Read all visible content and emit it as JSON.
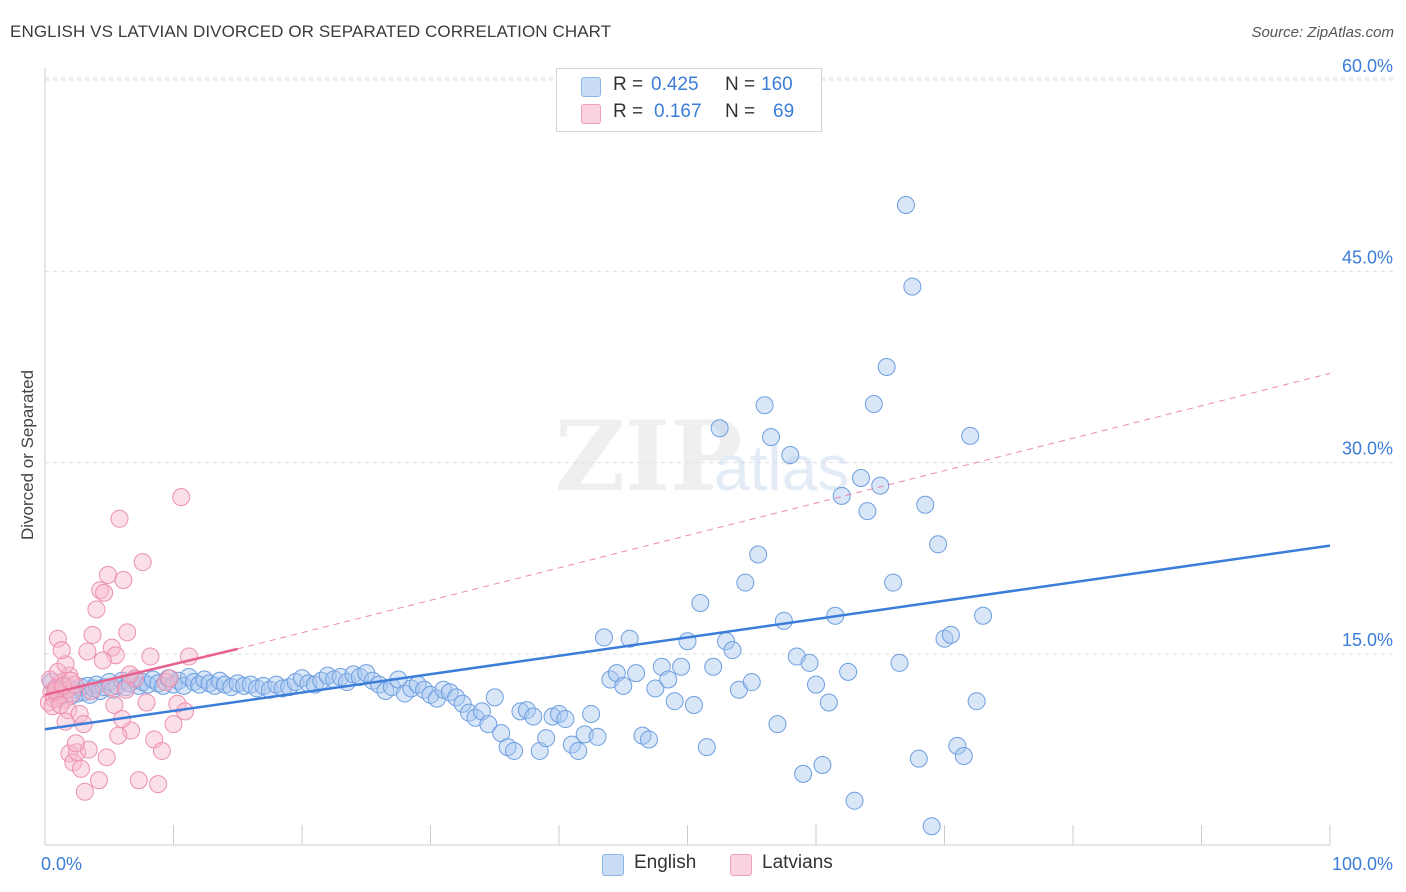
{
  "header": {
    "title": "ENGLISH VS LATVIAN DIVORCED OR SEPARATED CORRELATION CHART",
    "source": "Source: ZipAtlas.com"
  },
  "watermark": {
    "zip": "ZIP",
    "atlas": "atlas"
  },
  "legend": {
    "rows": [
      {
        "r_label": "R =",
        "r_value": "0.425",
        "n_label": "N =",
        "n_value": "160",
        "color": "#a9c8f0"
      },
      {
        "r_label": "R =",
        "r_value": "0.167",
        "n_label": "N =",
        "n_value": "69",
        "color": "#f6b8cb"
      }
    ]
  },
  "bottom_legend": {
    "english": "English",
    "latvians": "Latvians"
  },
  "chart_data": {
    "type": "scatter",
    "title": "ENGLISH VS LATVIAN DIVORCED OR SEPARATED CORRELATION CHART",
    "xlabel": "",
    "ylabel": "Divorced or Separated",
    "xlim": [
      0,
      100
    ],
    "ylim": [
      0,
      62
    ],
    "x_tick_labels": [
      "0.0%",
      "100.0%"
    ],
    "y_ticks": [
      15,
      30,
      45,
      60
    ],
    "y_tick_labels": [
      "15.0%",
      "30.0%",
      "45.0%",
      "60.0%"
    ],
    "grid": true,
    "colors": {
      "english": "#3b7dd8",
      "latvians": "#e8628f"
    },
    "series": [
      {
        "name": "English",
        "trend": {
          "x0": 0,
          "y0": 9.1,
          "x1": 100,
          "y1": 23.5,
          "style": "solid"
        },
        "points": [
          [
            0.5,
            12.8
          ],
          [
            0.8,
            12.3
          ],
          [
            1,
            11.5
          ],
          [
            1.2,
            12.7
          ],
          [
            1.5,
            12.1
          ],
          [
            1.8,
            12.4
          ],
          [
            2,
            11.7
          ],
          [
            2.2,
            12.2
          ],
          [
            2.5,
            11.9
          ],
          [
            2.8,
            12.4
          ],
          [
            3,
            12.0
          ],
          [
            3.3,
            12.5
          ],
          [
            3.5,
            11.8
          ],
          [
            3.8,
            12.3
          ],
          [
            4,
            12.6
          ],
          [
            4.3,
            12.1
          ],
          [
            4.6,
            12.4
          ],
          [
            5,
            12.8
          ],
          [
            5.3,
            12.2
          ],
          [
            5.6,
            12.5
          ],
          [
            6,
            12.9
          ],
          [
            6.3,
            12.4
          ],
          [
            6.6,
            12.7
          ],
          [
            7,
            13.0
          ],
          [
            7.3,
            12.5
          ],
          [
            7.6,
            12.8
          ],
          [
            8,
            12.6
          ],
          [
            8.4,
            13.0
          ],
          [
            8.8,
            12.7
          ],
          [
            9.2,
            12.5
          ],
          [
            9.6,
            13.1
          ],
          [
            10,
            12.6
          ],
          [
            10.4,
            12.9
          ],
          [
            10.8,
            12.5
          ],
          [
            11.2,
            13.2
          ],
          [
            11.6,
            12.8
          ],
          [
            12,
            12.6
          ],
          [
            12.4,
            13.0
          ],
          [
            12.8,
            12.7
          ],
          [
            13.2,
            12.5
          ],
          [
            13.6,
            12.9
          ],
          [
            14,
            12.6
          ],
          [
            14.5,
            12.4
          ],
          [
            15,
            12.7
          ],
          [
            15.5,
            12.5
          ],
          [
            16,
            12.6
          ],
          [
            16.5,
            12.3
          ],
          [
            17,
            12.5
          ],
          [
            17.5,
            12.2
          ],
          [
            18,
            12.6
          ],
          [
            18.5,
            12.3
          ],
          [
            19,
            12.4
          ],
          [
            19.5,
            12.8
          ],
          [
            20,
            13.1
          ],
          [
            20.5,
            12.7
          ],
          [
            21,
            12.6
          ],
          [
            21.5,
            12.9
          ],
          [
            22,
            13.3
          ],
          [
            22.5,
            13.0
          ],
          [
            23,
            13.2
          ],
          [
            23.5,
            12.8
          ],
          [
            24,
            13.4
          ],
          [
            24.5,
            13.2
          ],
          [
            25,
            13.5
          ],
          [
            25.5,
            12.9
          ],
          [
            26,
            12.6
          ],
          [
            26.5,
            12.1
          ],
          [
            27,
            12.4
          ],
          [
            27.5,
            13.0
          ],
          [
            28,
            11.9
          ],
          [
            28.5,
            12.3
          ],
          [
            29,
            12.6
          ],
          [
            29.5,
            12.2
          ],
          [
            30,
            11.8
          ],
          [
            30.5,
            11.5
          ],
          [
            31,
            12.2
          ],
          [
            31.5,
            12.0
          ],
          [
            32,
            11.6
          ],
          [
            32.5,
            11.1
          ],
          [
            33,
            10.4
          ],
          [
            33.5,
            10.0
          ],
          [
            34,
            10.5
          ],
          [
            34.5,
            9.5
          ],
          [
            35,
            11.6
          ],
          [
            35.5,
            8.8
          ],
          [
            36,
            7.7
          ],
          [
            36.5,
            7.4
          ],
          [
            37,
            10.5
          ],
          [
            37.5,
            10.6
          ],
          [
            38,
            10.1
          ],
          [
            38.5,
            7.4
          ],
          [
            39,
            8.4
          ],
          [
            39.5,
            10.1
          ],
          [
            40,
            10.3
          ],
          [
            40.5,
            9.9
          ],
          [
            41,
            7.9
          ],
          [
            41.5,
            7.4
          ],
          [
            42,
            8.7
          ],
          [
            42.5,
            10.3
          ],
          [
            43,
            8.5
          ],
          [
            43.5,
            16.3
          ],
          [
            44,
            13.0
          ],
          [
            44.5,
            13.5
          ],
          [
            45,
            12.5
          ],
          [
            45.5,
            16.2
          ],
          [
            46,
            13.5
          ],
          [
            46.5,
            8.6
          ],
          [
            47,
            8.3
          ],
          [
            47.5,
            12.3
          ],
          [
            48,
            14.0
          ],
          [
            48.5,
            13.0
          ],
          [
            49,
            11.3
          ],
          [
            49.5,
            14.0
          ],
          [
            50,
            16.0
          ],
          [
            50.5,
            11.0
          ],
          [
            51,
            19.0
          ],
          [
            51.5,
            7.7
          ],
          [
            52,
            14.0
          ],
          [
            52.5,
            32.7
          ],
          [
            53,
            16.0
          ],
          [
            53.5,
            15.3
          ],
          [
            54,
            12.2
          ],
          [
            54.5,
            20.6
          ],
          [
            55,
            12.8
          ],
          [
            55.5,
            22.8
          ],
          [
            56,
            34.5
          ],
          [
            56.5,
            32.0
          ],
          [
            57,
            9.5
          ],
          [
            57.5,
            17.6
          ],
          [
            58,
            30.6
          ],
          [
            58.5,
            14.8
          ],
          [
            59,
            5.6
          ],
          [
            59.5,
            14.3
          ],
          [
            60,
            12.6
          ],
          [
            60.5,
            6.3
          ],
          [
            61,
            11.2
          ],
          [
            61.5,
            18.0
          ],
          [
            62,
            27.4
          ],
          [
            62.5,
            13.6
          ],
          [
            63,
            3.5
          ],
          [
            63.5,
            28.8
          ],
          [
            64,
            26.2
          ],
          [
            64.5,
            34.6
          ],
          [
            65,
            28.2
          ],
          [
            65.5,
            37.5
          ],
          [
            66,
            20.6
          ],
          [
            66.5,
            14.3
          ],
          [
            67,
            50.2
          ],
          [
            67.5,
            43.8
          ],
          [
            68,
            6.8
          ],
          [
            68.5,
            26.7
          ],
          [
            69,
            1.5
          ],
          [
            69.5,
            23.6
          ],
          [
            70,
            16.2
          ],
          [
            70.5,
            16.5
          ],
          [
            71,
            7.8
          ],
          [
            71.5,
            7.0
          ],
          [
            72,
            32.1
          ],
          [
            72.5,
            11.3
          ],
          [
            73,
            18.0
          ]
        ]
      },
      {
        "name": "Latvians",
        "trend": {
          "x0": 0,
          "y0": 11.8,
          "x1": 15,
          "y1": 15.4,
          "style": "solid",
          "extended_to": [
            100,
            37.0
          ]
        },
        "points": [
          [
            0.3,
            11.2
          ],
          [
            0.5,
            12.0
          ],
          [
            0.7,
            11.5
          ],
          [
            0.9,
            12.4
          ],
          [
            1.1,
            11.8
          ],
          [
            1.3,
            12.8
          ],
          [
            1.5,
            11.4
          ],
          [
            1.7,
            12.2
          ],
          [
            1.9,
            13.3
          ],
          [
            2.1,
            11.9
          ],
          [
            2.3,
            12.6
          ],
          [
            0.4,
            13.0
          ],
          [
            0.6,
            10.9
          ],
          [
            0.8,
            12.1
          ],
          [
            1.0,
            13.6
          ],
          [
            1.2,
            11.0
          ],
          [
            1.4,
            12.5
          ],
          [
            1.6,
            14.2
          ],
          [
            1.8,
            10.6
          ],
          [
            2.0,
            12.9
          ],
          [
            1.0,
            16.2
          ],
          [
            1.3,
            15.3
          ],
          [
            1.6,
            9.7
          ],
          [
            1.9,
            7.2
          ],
          [
            2.2,
            6.5
          ],
          [
            2.5,
            7.3
          ],
          [
            2.8,
            6.0
          ],
          [
            3.1,
            4.2
          ],
          [
            3.4,
            7.5
          ],
          [
            3.7,
            16.5
          ],
          [
            4.0,
            18.5
          ],
          [
            4.3,
            20.0
          ],
          [
            4.6,
            19.8
          ],
          [
            4.9,
            21.2
          ],
          [
            5.2,
            15.5
          ],
          [
            5.5,
            14.9
          ],
          [
            5.8,
            25.6
          ],
          [
            6.1,
            20.8
          ],
          [
            6.4,
            16.7
          ],
          [
            6.7,
            9.0
          ],
          [
            7.0,
            13.1
          ],
          [
            7.3,
            5.1
          ],
          [
            7.6,
            22.2
          ],
          [
            7.9,
            11.2
          ],
          [
            8.2,
            14.8
          ],
          [
            8.5,
            8.3
          ],
          [
            8.8,
            4.8
          ],
          [
            9.1,
            7.4
          ],
          [
            9.4,
            12.8
          ],
          [
            9.7,
            13.1
          ],
          [
            10.0,
            9.5
          ],
          [
            10.3,
            11.1
          ],
          [
            10.6,
            27.3
          ],
          [
            10.9,
            10.5
          ],
          [
            11.2,
            14.8
          ],
          [
            2.4,
            8.0
          ],
          [
            2.7,
            10.3
          ],
          [
            3.0,
            9.5
          ],
          [
            3.3,
            15.2
          ],
          [
            3.6,
            12.1
          ],
          [
            4.2,
            5.1
          ],
          [
            4.5,
            14.5
          ],
          [
            4.8,
            6.9
          ],
          [
            5.1,
            12.4
          ],
          [
            5.4,
            11.0
          ],
          [
            5.7,
            8.6
          ],
          [
            6.0,
            9.9
          ],
          [
            6.3,
            12.2
          ],
          [
            6.6,
            13.4
          ]
        ]
      }
    ]
  }
}
